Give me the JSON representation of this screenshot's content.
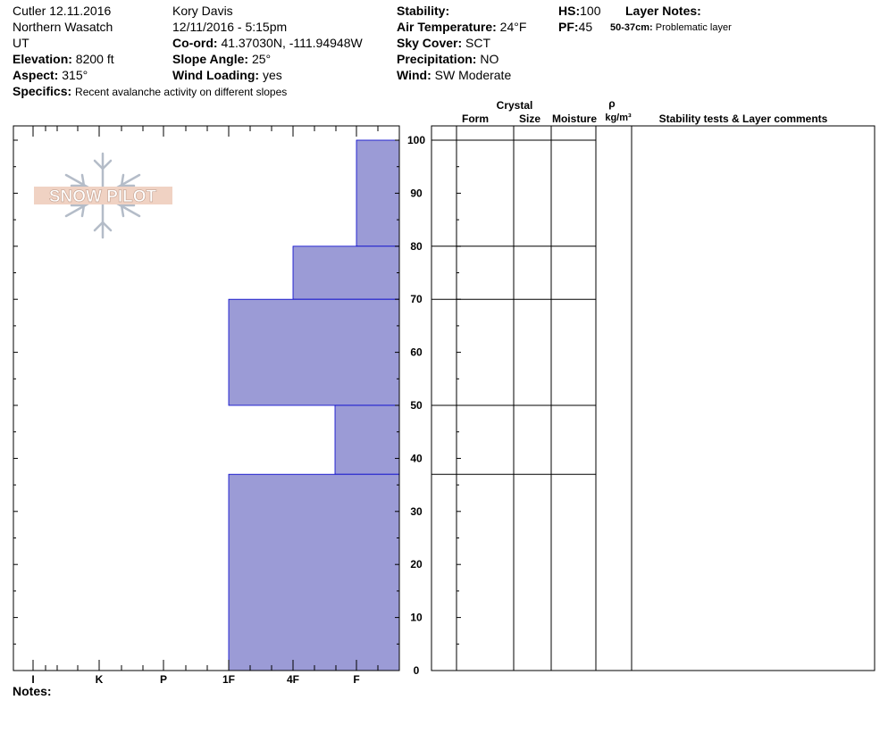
{
  "header": {
    "site": "Cutler 12.11.2016",
    "range": "Northern Wasatch",
    "state": "UT",
    "elevation_label": "Elevation:",
    "elevation_value": "8200 ft",
    "aspect_label": "Aspect:",
    "aspect_value": "315°",
    "specifics_label": "Specifics:",
    "specifics_value": "Recent avalanche activity on different slopes",
    "observer": "Kory Davis",
    "datetime": "12/11/2016 - 5:15pm",
    "coord_label": "Co-ord:",
    "coord_value": "41.37030N, -111.94948W",
    "slope_label": "Slope Angle:",
    "slope_value": "25°",
    "wind_loading_label": "Wind Loading:",
    "wind_loading_value": "yes",
    "stability_label": "Stability:",
    "stability_value": "",
    "air_temp_label": "Air Temperature:",
    "air_temp_value": "24°F",
    "sky_label": "Sky Cover:",
    "sky_value": "SCT",
    "precip_label": "Precipitation:",
    "precip_value": "NO",
    "wind_label": "Wind:",
    "wind_value": "SW Moderate",
    "hs_label": "HS:",
    "hs_value": "100",
    "pf_label": "PF:",
    "pf_value": "45",
    "layer_notes_label": "Layer Notes:",
    "layer_note_range": "50-37cm:",
    "layer_note_text": "Problematic layer"
  },
  "logo": {
    "text": "SNOW PILOT"
  },
  "columns": {
    "crystal": "Crystal",
    "form": "Form",
    "size": "Size",
    "moisture": "Moisture",
    "rho": "ρ",
    "density_unit": "kg/m³",
    "stability_comments": "Stability tests & Layer comments"
  },
  "notes_label": "Notes:",
  "colors": {
    "hardness_fill": "#9b9bd6",
    "hardness_edge": "#0000cc"
  },
  "chart_data": {
    "type": "bar",
    "title": "",
    "xlabel": "",
    "ylabel": "",
    "ylim": [
      0,
      100
    ],
    "y_ticks": [
      "0",
      "10",
      "20",
      "30",
      "40",
      "50",
      "60",
      "70",
      "80",
      "90",
      "100"
    ],
    "hardness_categories": [
      "I",
      "K",
      "P",
      "1F",
      "4F",
      "F"
    ],
    "layers": [
      {
        "top": 100,
        "bottom": 80,
        "hardness": "F"
      },
      {
        "top": 80,
        "bottom": 70,
        "hardness": "4F"
      },
      {
        "top": 70,
        "bottom": 50,
        "hardness": "1F"
      },
      {
        "top": 50,
        "bottom": 37,
        "hardness": "F-"
      },
      {
        "top": 37,
        "bottom": 0,
        "hardness": "1F"
      }
    ]
  }
}
